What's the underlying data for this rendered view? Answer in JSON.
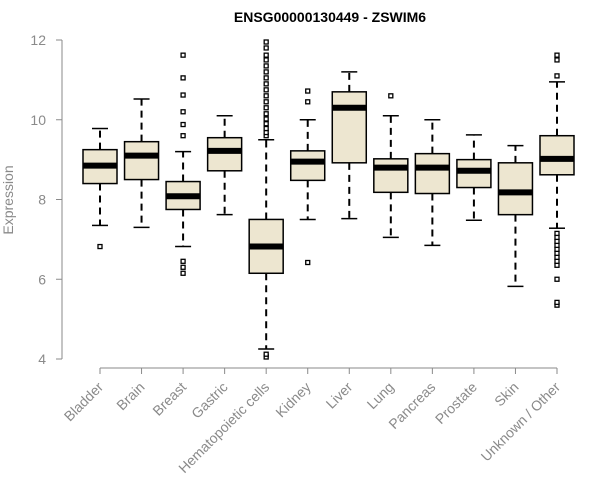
{
  "chart_data": {
    "type": "boxplot",
    "title": "ENSG00000130449 - ZSWIM6",
    "xlabel": "",
    "ylabel": "Expression",
    "ylim": [
      4,
      12
    ],
    "yticks": [
      4,
      6,
      8,
      10,
      12
    ],
    "grid": false,
    "box_fill": "#ede6d0",
    "categories": [
      "Bladder",
      "Brain",
      "Breast",
      "Gastric",
      "Hematopoietic cells",
      "Kidney",
      "Liver",
      "Lung",
      "Pancreas",
      "Prostate",
      "Skin",
      "Unknown / Other"
    ],
    "boxes": [
      {
        "whisker_low": 7.35,
        "q1": 8.4,
        "median": 8.85,
        "q3": 9.25,
        "whisker_high": 9.78,
        "outliers": [
          6.82
        ]
      },
      {
        "whisker_low": 7.3,
        "q1": 8.5,
        "median": 9.1,
        "q3": 9.45,
        "whisker_high": 10.52,
        "outliers": []
      },
      {
        "whisker_low": 6.82,
        "q1": 7.75,
        "median": 8.08,
        "q3": 8.45,
        "whisker_high": 9.2,
        "outliers": [
          6.15,
          6.3,
          6.45,
          9.6,
          9.88,
          10.2,
          10.62,
          11.05,
          11.62
        ]
      },
      {
        "whisker_low": 7.62,
        "q1": 8.72,
        "median": 9.22,
        "q3": 9.55,
        "whisker_high": 10.1,
        "outliers": []
      },
      {
        "whisker_low": 4.25,
        "q1": 6.15,
        "median": 6.82,
        "q3": 7.5,
        "whisker_high": 9.5,
        "outliers": [
          4.05,
          4.12,
          9.6,
          9.68,
          9.78,
          9.9,
          10.02,
          10.15,
          10.3,
          10.45,
          10.6,
          10.75,
          10.9,
          11.05,
          11.2,
          11.35,
          11.5,
          11.62,
          11.8,
          11.95
        ]
      },
      {
        "whisker_low": 7.5,
        "q1": 8.48,
        "median": 8.95,
        "q3": 9.22,
        "whisker_high": 10.0,
        "outliers": [
          6.42,
          10.45,
          10.72
        ]
      },
      {
        "whisker_low": 7.52,
        "q1": 8.92,
        "median": 10.3,
        "q3": 10.7,
        "whisker_high": 11.2,
        "outliers": []
      },
      {
        "whisker_low": 7.05,
        "q1": 8.18,
        "median": 8.8,
        "q3": 9.02,
        "whisker_high": 10.1,
        "outliers": [
          10.6
        ]
      },
      {
        "whisker_low": 6.85,
        "q1": 8.15,
        "median": 8.8,
        "q3": 9.15,
        "whisker_high": 10.0,
        "outliers": []
      },
      {
        "whisker_low": 7.48,
        "q1": 8.3,
        "median": 8.72,
        "q3": 9.0,
        "whisker_high": 9.62,
        "outliers": []
      },
      {
        "whisker_low": 5.82,
        "q1": 7.62,
        "median": 8.18,
        "q3": 8.92,
        "whisker_high": 9.35,
        "outliers": []
      },
      {
        "whisker_low": 7.28,
        "q1": 8.62,
        "median": 9.02,
        "q3": 9.6,
        "whisker_high": 10.95,
        "outliers": [
          5.35,
          5.42,
          6.0,
          6.35,
          6.45,
          6.55,
          6.65,
          6.75,
          6.85,
          6.95,
          7.05,
          7.15,
          11.1,
          11.5,
          11.62
        ]
      }
    ]
  }
}
